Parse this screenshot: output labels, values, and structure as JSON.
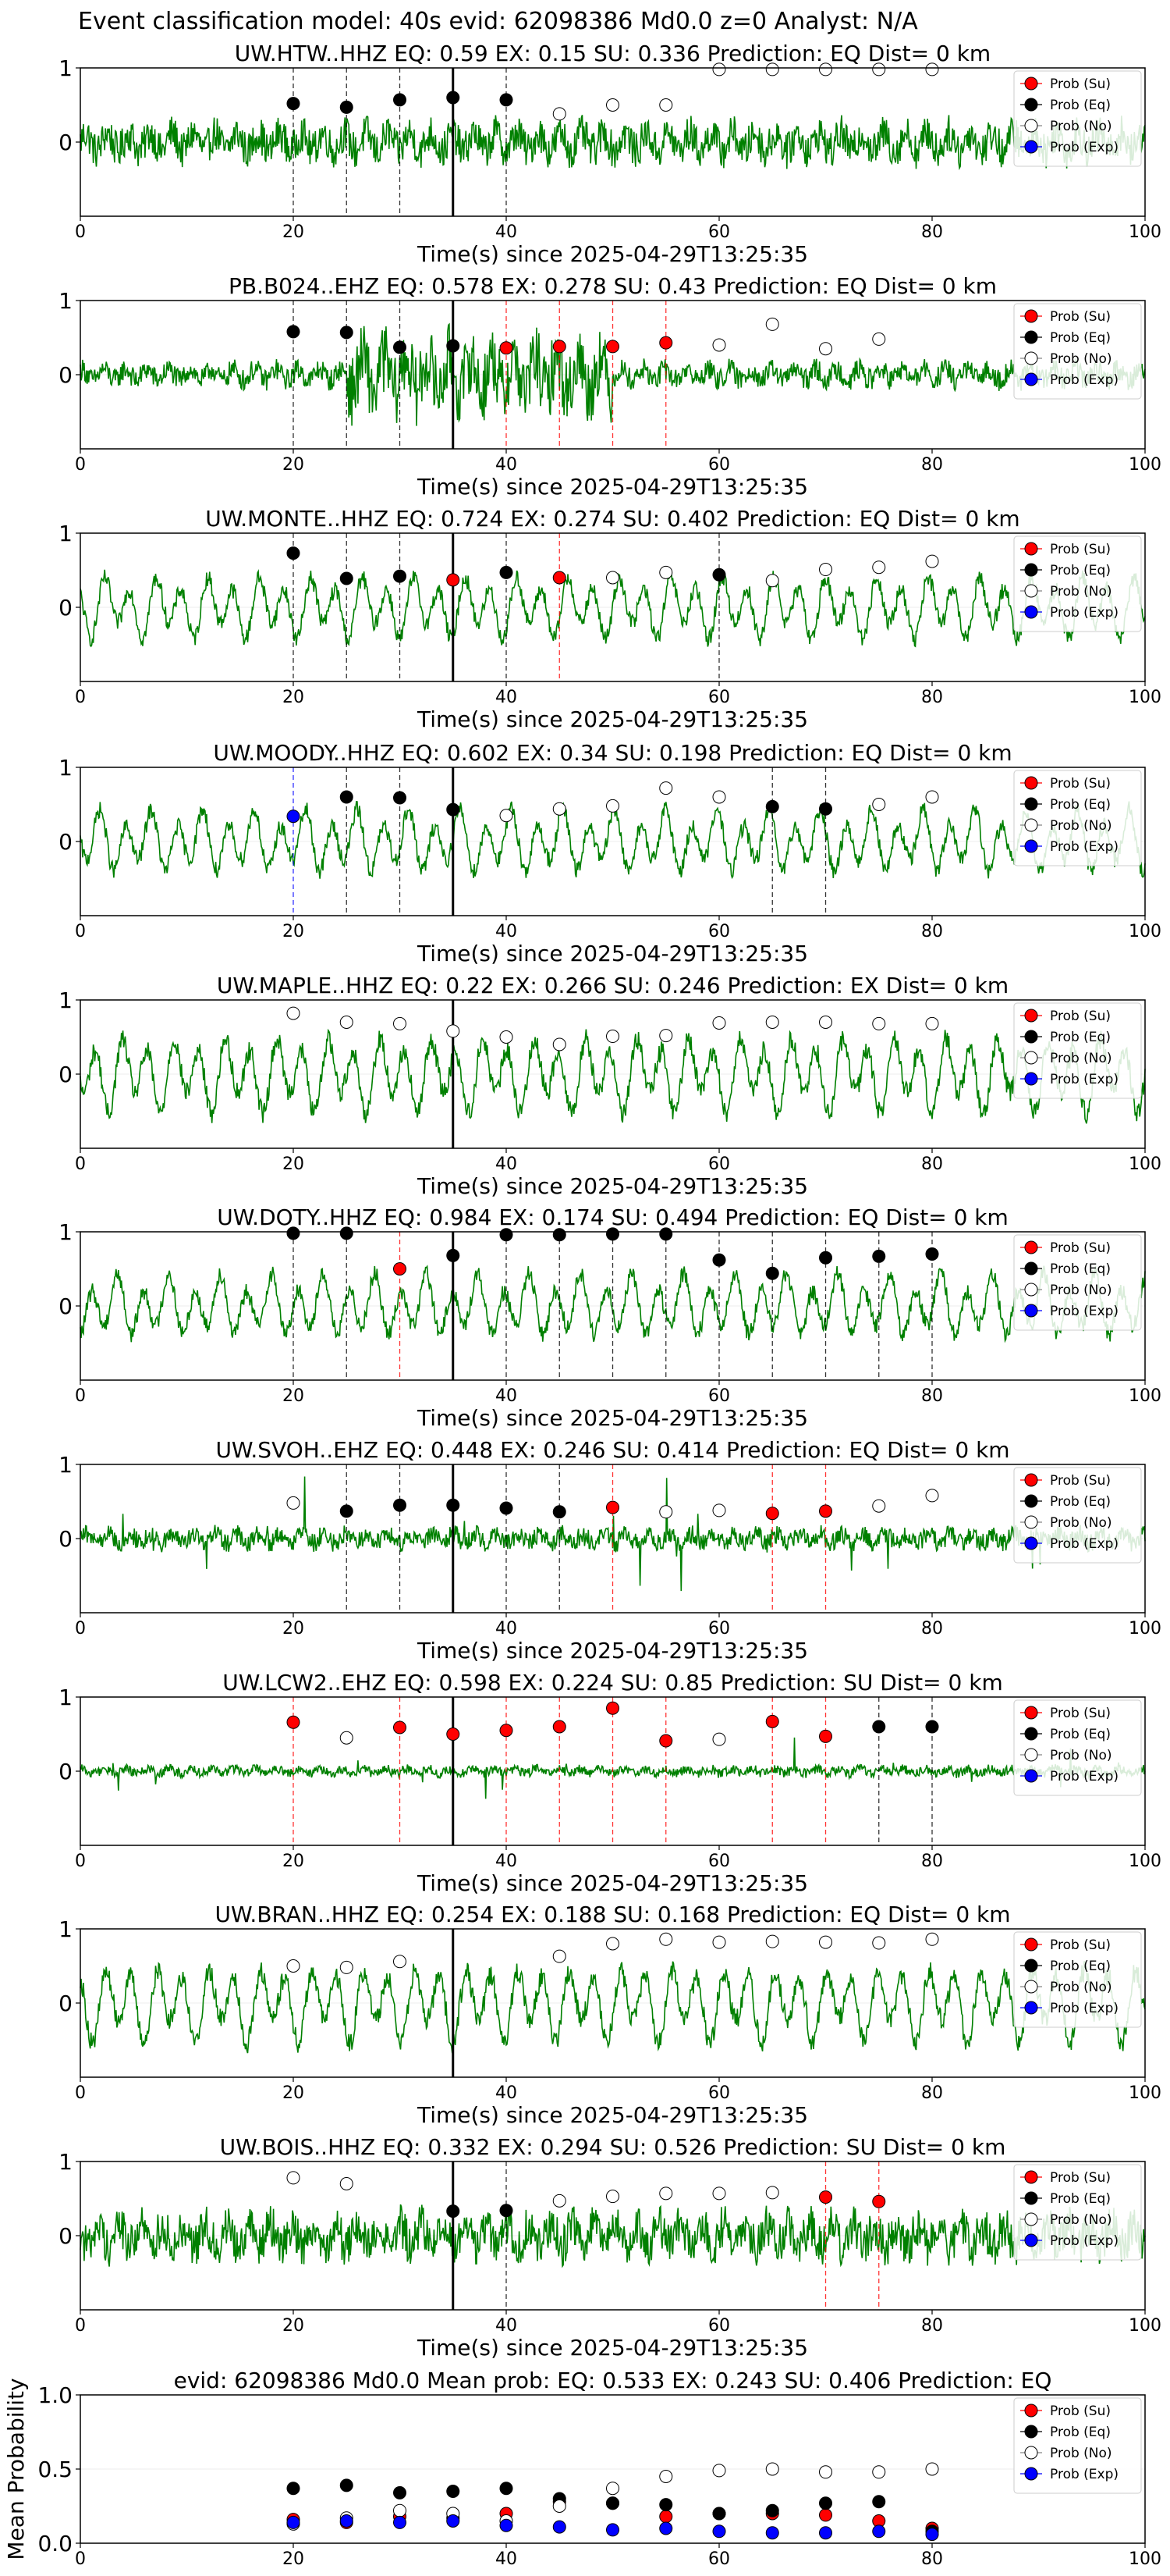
{
  "figure_title": "Event classification model: 40s evid: 62098386 Md0.0 z=0 Analyst: N/A",
  "legend_labels": [
    "Prob (Su)",
    "Prob (Eq)",
    "Prob (No)",
    "Prob (Exp)"
  ],
  "colors": {
    "waveform": "#008000",
    "su": "#ff0000",
    "eq": "#000000",
    "no": "#ffffff",
    "exp": "#0000ff",
    "su_line": "#ff0000",
    "eq_line": "#000000",
    "exp_line": "#0000ff"
  },
  "chart_data": [
    {
      "type": "line+scatter",
      "title": "UW.HTW..HHZ   EQ: 0.59  EX: 0.15  SU: 0.336   Prediction: EQ    Dist= 0 km",
      "xlabel": "Time(s) since 2025-04-29T13:25:35",
      "ylabel": "",
      "xlim": [
        0,
        100
      ],
      "ylim": [
        -1,
        1
      ],
      "xticks": [
        0,
        20,
        40,
        60,
        80,
        100
      ],
      "yticks": [
        0,
        1
      ],
      "pick_time": 35,
      "waveform": {
        "amplitude": 0.35,
        "character": "broadband"
      },
      "points": [
        {
          "x": 20,
          "y": 0.52,
          "c": "eq",
          "line": true
        },
        {
          "x": 25,
          "y": 0.47,
          "c": "eq",
          "line": true
        },
        {
          "x": 30,
          "y": 0.57,
          "c": "eq",
          "line": true
        },
        {
          "x": 35,
          "y": 0.6,
          "c": "eq",
          "line": true
        },
        {
          "x": 40,
          "y": 0.57,
          "c": "eq",
          "line": true
        },
        {
          "x": 45,
          "y": 0.38,
          "c": "no"
        },
        {
          "x": 50,
          "y": 0.5,
          "c": "no"
        },
        {
          "x": 55,
          "y": 0.5,
          "c": "no"
        },
        {
          "x": 60,
          "y": 0.98,
          "c": "no"
        },
        {
          "x": 65,
          "y": 0.98,
          "c": "no"
        },
        {
          "x": 70,
          "y": 0.98,
          "c": "no"
        },
        {
          "x": 75,
          "y": 0.98,
          "c": "no"
        },
        {
          "x": 80,
          "y": 0.98,
          "c": "no"
        }
      ]
    },
    {
      "type": "line+scatter",
      "title": "PB.B024..EHZ   EQ: 0.578  EX: 0.278  SU: 0.43   Prediction: EQ    Dist= 0 km",
      "xlabel": "Time(s) since 2025-04-29T13:25:35",
      "ylabel": "",
      "xlim": [
        0,
        100
      ],
      "ylim": [
        -1,
        1
      ],
      "xticks": [
        0,
        20,
        40,
        60,
        80,
        100
      ],
      "yticks": [
        0,
        1
      ],
      "pick_time": 35,
      "waveform": {
        "amplitude": 0.3,
        "character": "burst"
      },
      "points": [
        {
          "x": 20,
          "y": 0.58,
          "c": "eq",
          "line": true
        },
        {
          "x": 25,
          "y": 0.57,
          "c": "eq",
          "line": true
        },
        {
          "x": 30,
          "y": 0.37,
          "c": "eq",
          "line": true
        },
        {
          "x": 35,
          "y": 0.39,
          "c": "eq",
          "line": true
        },
        {
          "x": 40,
          "y": 0.36,
          "c": "su",
          "line": true
        },
        {
          "x": 45,
          "y": 0.38,
          "c": "su",
          "line": true
        },
        {
          "x": 50,
          "y": 0.38,
          "c": "su",
          "line": true
        },
        {
          "x": 55,
          "y": 0.43,
          "c": "su",
          "line": true
        },
        {
          "x": 60,
          "y": 0.4,
          "c": "no"
        },
        {
          "x": 65,
          "y": 0.68,
          "c": "no"
        },
        {
          "x": 70,
          "y": 0.35,
          "c": "no"
        },
        {
          "x": 75,
          "y": 0.48,
          "c": "no"
        }
      ]
    },
    {
      "type": "line+scatter",
      "title": "UW.MONTE..HHZ   EQ: 0.724  EX: 0.274  SU: 0.402   Prediction: EQ    Dist= 0 km",
      "xlabel": "Time(s) since 2025-04-29T13:25:35",
      "ylabel": "",
      "xlim": [
        0,
        100
      ],
      "ylim": [
        -1,
        1
      ],
      "xticks": [
        0,
        20,
        40,
        60,
        80,
        100
      ],
      "yticks": [
        0,
        1
      ],
      "pick_time": 35,
      "waveform": {
        "amplitude": 0.45,
        "character": "oscillatory"
      },
      "points": [
        {
          "x": 20,
          "y": 0.73,
          "c": "eq",
          "line": true
        },
        {
          "x": 25,
          "y": 0.39,
          "c": "eq",
          "line": true
        },
        {
          "x": 30,
          "y": 0.42,
          "c": "eq",
          "line": true
        },
        {
          "x": 35,
          "y": 0.37,
          "c": "su",
          "line": true
        },
        {
          "x": 40,
          "y": 0.47,
          "c": "eq",
          "line": true
        },
        {
          "x": 45,
          "y": 0.4,
          "c": "su",
          "line": true
        },
        {
          "x": 50,
          "y": 0.4,
          "c": "no"
        },
        {
          "x": 55,
          "y": 0.47,
          "c": "no"
        },
        {
          "x": 60,
          "y": 0.44,
          "c": "eq",
          "line": true
        },
        {
          "x": 65,
          "y": 0.36,
          "c": "no"
        },
        {
          "x": 70,
          "y": 0.51,
          "c": "no"
        },
        {
          "x": 75,
          "y": 0.54,
          "c": "no"
        },
        {
          "x": 80,
          "y": 0.62,
          "c": "no"
        }
      ]
    },
    {
      "type": "line+scatter",
      "title": "UW.MOODY..HHZ   EQ: 0.602  EX: 0.34  SU: 0.198   Prediction: EQ    Dist= 0 km",
      "xlabel": "Time(s) since 2025-04-29T13:25:35",
      "ylabel": "",
      "xlim": [
        0,
        100
      ],
      "ylim": [
        -1,
        1
      ],
      "xticks": [
        0,
        20,
        40,
        60,
        80,
        100
      ],
      "yticks": [
        0,
        1
      ],
      "pick_time": 35,
      "waveform": {
        "amplitude": 0.45,
        "character": "oscillatory"
      },
      "points": [
        {
          "x": 20,
          "y": 0.34,
          "c": "exp",
          "line": true
        },
        {
          "x": 25,
          "y": 0.6,
          "c": "eq",
          "line": true
        },
        {
          "x": 30,
          "y": 0.59,
          "c": "eq",
          "line": true
        },
        {
          "x": 35,
          "y": 0.43,
          "c": "eq",
          "line": true
        },
        {
          "x": 40,
          "y": 0.35,
          "c": "no"
        },
        {
          "x": 45,
          "y": 0.44,
          "c": "no"
        },
        {
          "x": 50,
          "y": 0.48,
          "c": "no"
        },
        {
          "x": 55,
          "y": 0.72,
          "c": "no"
        },
        {
          "x": 60,
          "y": 0.6,
          "c": "no"
        },
        {
          "x": 65,
          "y": 0.47,
          "c": "eq",
          "line": true
        },
        {
          "x": 70,
          "y": 0.44,
          "c": "eq",
          "line": true
        },
        {
          "x": 75,
          "y": 0.5,
          "c": "no"
        },
        {
          "x": 80,
          "y": 0.6,
          "c": "no"
        }
      ]
    },
    {
      "type": "line+scatter",
      "title": "UW.MAPLE..HHZ   EQ: 0.22  EX: 0.266  SU: 0.246   Prediction: EX    Dist= 0 km",
      "xlabel": "Time(s) since 2025-04-29T13:25:35",
      "ylabel": "",
      "xlim": [
        0,
        100
      ],
      "ylim": [
        -1,
        1
      ],
      "xticks": [
        0,
        20,
        40,
        60,
        80,
        100
      ],
      "yticks": [
        0,
        1
      ],
      "pick_time": 35,
      "waveform": {
        "amplitude": 0.55,
        "character": "oscillatory"
      },
      "points": [
        {
          "x": 20,
          "y": 0.82,
          "c": "no"
        },
        {
          "x": 25,
          "y": 0.7,
          "c": "no"
        },
        {
          "x": 30,
          "y": 0.68,
          "c": "no"
        },
        {
          "x": 35,
          "y": 0.58,
          "c": "no"
        },
        {
          "x": 40,
          "y": 0.5,
          "c": "no"
        },
        {
          "x": 45,
          "y": 0.4,
          "c": "no"
        },
        {
          "x": 50,
          "y": 0.51,
          "c": "no"
        },
        {
          "x": 55,
          "y": 0.52,
          "c": "no"
        },
        {
          "x": 60,
          "y": 0.69,
          "c": "no"
        },
        {
          "x": 65,
          "y": 0.7,
          "c": "no"
        },
        {
          "x": 70,
          "y": 0.7,
          "c": "no"
        },
        {
          "x": 75,
          "y": 0.68,
          "c": "no"
        },
        {
          "x": 80,
          "y": 0.68,
          "c": "no"
        }
      ]
    },
    {
      "type": "line+scatter",
      "title": "UW.DOTY..HHZ   EQ: 0.984  EX: 0.174  SU: 0.494   Prediction: EQ    Dist= 0 km",
      "xlabel": "Time(s) since 2025-04-29T13:25:35",
      "ylabel": "",
      "xlim": [
        0,
        100
      ],
      "ylim": [
        -1,
        1
      ],
      "xticks": [
        0,
        20,
        40,
        60,
        80,
        100
      ],
      "yticks": [
        0,
        1
      ],
      "pick_time": 35,
      "waveform": {
        "amplitude": 0.45,
        "character": "oscillatory"
      },
      "points": [
        {
          "x": 20,
          "y": 0.98,
          "c": "eq",
          "line": true
        },
        {
          "x": 25,
          "y": 0.98,
          "c": "eq",
          "line": true
        },
        {
          "x": 30,
          "y": 0.5,
          "c": "su",
          "line": true
        },
        {
          "x": 35,
          "y": 0.68,
          "c": "eq",
          "line": true
        },
        {
          "x": 40,
          "y": 0.96,
          "c": "eq",
          "line": true
        },
        {
          "x": 45,
          "y": 0.96,
          "c": "eq",
          "line": true
        },
        {
          "x": 50,
          "y": 0.97,
          "c": "eq",
          "line": true
        },
        {
          "x": 55,
          "y": 0.97,
          "c": "eq",
          "line": true
        },
        {
          "x": 60,
          "y": 0.62,
          "c": "eq",
          "line": true
        },
        {
          "x": 65,
          "y": 0.44,
          "c": "eq",
          "line": true
        },
        {
          "x": 70,
          "y": 0.65,
          "c": "eq",
          "line": true
        },
        {
          "x": 75,
          "y": 0.67,
          "c": "eq",
          "line": true
        },
        {
          "x": 80,
          "y": 0.7,
          "c": "eq",
          "line": true
        }
      ]
    },
    {
      "type": "line+scatter",
      "title": "UW.SVOH..EHZ   EQ: 0.448  EX: 0.246  SU: 0.414   Prediction: EQ    Dist= 0 km",
      "xlabel": "Time(s) since 2025-04-29T13:25:35",
      "ylabel": "",
      "xlim": [
        0,
        100
      ],
      "ylim": [
        -1,
        1
      ],
      "xticks": [
        0,
        20,
        40,
        60,
        80,
        100
      ],
      "yticks": [
        0,
        1
      ],
      "pick_time": 35,
      "waveform": {
        "amplitude": 0.3,
        "character": "spiky"
      },
      "points": [
        {
          "x": 20,
          "y": 0.48,
          "c": "no"
        },
        {
          "x": 25,
          "y": 0.37,
          "c": "eq",
          "line": true
        },
        {
          "x": 30,
          "y": 0.45,
          "c": "eq",
          "line": true
        },
        {
          "x": 35,
          "y": 0.45,
          "c": "eq",
          "line": true
        },
        {
          "x": 40,
          "y": 0.41,
          "c": "eq",
          "line": true
        },
        {
          "x": 45,
          "y": 0.36,
          "c": "eq",
          "line": true
        },
        {
          "x": 50,
          "y": 0.42,
          "c": "su",
          "line": true
        },
        {
          "x": 55,
          "y": 0.36,
          "c": "no"
        },
        {
          "x": 60,
          "y": 0.38,
          "c": "no"
        },
        {
          "x": 65,
          "y": 0.34,
          "c": "su",
          "line": true
        },
        {
          "x": 70,
          "y": 0.37,
          "c": "su",
          "line": true
        },
        {
          "x": 75,
          "y": 0.44,
          "c": "no"
        },
        {
          "x": 80,
          "y": 0.58,
          "c": "no"
        }
      ]
    },
    {
      "type": "line+scatter",
      "title": "UW.LCW2..EHZ   EQ: 0.598  EX: 0.224  SU: 0.85   Prediction: SU    Dist= 0 km",
      "xlabel": "Time(s) since 2025-04-29T13:25:35",
      "ylabel": "",
      "xlim": [
        0,
        100
      ],
      "ylim": [
        -1,
        1
      ],
      "xticks": [
        0,
        20,
        40,
        60,
        80,
        100
      ],
      "yticks": [
        0,
        1
      ],
      "pick_time": 35,
      "waveform": {
        "amplitude": 0.15,
        "character": "spiky"
      },
      "points": [
        {
          "x": 20,
          "y": 0.66,
          "c": "su",
          "line": true
        },
        {
          "x": 25,
          "y": 0.45,
          "c": "no"
        },
        {
          "x": 30,
          "y": 0.59,
          "c": "su",
          "line": true
        },
        {
          "x": 35,
          "y": 0.5,
          "c": "su",
          "line": true
        },
        {
          "x": 40,
          "y": 0.55,
          "c": "su",
          "line": true
        },
        {
          "x": 45,
          "y": 0.6,
          "c": "su",
          "line": true
        },
        {
          "x": 50,
          "y": 0.85,
          "c": "su",
          "line": true
        },
        {
          "x": 55,
          "y": 0.41,
          "c": "su",
          "line": true
        },
        {
          "x": 60,
          "y": 0.43,
          "c": "no"
        },
        {
          "x": 65,
          "y": 0.67,
          "c": "su",
          "line": true
        },
        {
          "x": 70,
          "y": 0.47,
          "c": "su",
          "line": true
        },
        {
          "x": 75,
          "y": 0.6,
          "c": "eq",
          "line": true
        },
        {
          "x": 80,
          "y": 0.6,
          "c": "eq",
          "line": true
        }
      ]
    },
    {
      "type": "line+scatter",
      "title": "UW.BRAN..HHZ   EQ: 0.254  EX: 0.188  SU: 0.168   Prediction: EQ    Dist= 0 km",
      "xlabel": "Time(s) since 2025-04-29T13:25:35",
      "ylabel": "",
      "xlim": [
        0,
        100
      ],
      "ylim": [
        -1,
        1
      ],
      "xticks": [
        0,
        20,
        40,
        60,
        80,
        100
      ],
      "yticks": [
        0,
        1
      ],
      "pick_time": 35,
      "waveform": {
        "amplitude": 0.55,
        "character": "oscillatory"
      },
      "points": [
        {
          "x": 20,
          "y": 0.5,
          "c": "no"
        },
        {
          "x": 25,
          "y": 0.48,
          "c": "no"
        },
        {
          "x": 30,
          "y": 0.56,
          "c": "no"
        },
        {
          "x": 45,
          "y": 0.63,
          "c": "no"
        },
        {
          "x": 50,
          "y": 0.8,
          "c": "no"
        },
        {
          "x": 55,
          "y": 0.86,
          "c": "no"
        },
        {
          "x": 60,
          "y": 0.82,
          "c": "no"
        },
        {
          "x": 65,
          "y": 0.83,
          "c": "no"
        },
        {
          "x": 70,
          "y": 0.82,
          "c": "no"
        },
        {
          "x": 75,
          "y": 0.81,
          "c": "no"
        },
        {
          "x": 80,
          "y": 0.86,
          "c": "no"
        }
      ]
    },
    {
      "type": "line+scatter",
      "title": "UW.BOIS..HHZ   EQ: 0.332  EX: 0.294  SU: 0.526   Prediction: SU    Dist= 0 km",
      "xlabel": "Time(s) since 2025-04-29T13:25:35",
      "ylabel": "",
      "xlim": [
        0,
        100
      ],
      "ylim": [
        -1,
        1
      ],
      "xticks": [
        0,
        20,
        40,
        60,
        80,
        100
      ],
      "yticks": [
        0,
        1
      ],
      "pick_time": 35,
      "waveform": {
        "amplitude": 0.4,
        "character": "broadband"
      },
      "points": [
        {
          "x": 20,
          "y": 0.78,
          "c": "no"
        },
        {
          "x": 25,
          "y": 0.7,
          "c": "no"
        },
        {
          "x": 35,
          "y": 0.33,
          "c": "eq",
          "line": true
        },
        {
          "x": 40,
          "y": 0.34,
          "c": "eq",
          "line": true
        },
        {
          "x": 45,
          "y": 0.47,
          "c": "no"
        },
        {
          "x": 50,
          "y": 0.53,
          "c": "no"
        },
        {
          "x": 55,
          "y": 0.57,
          "c": "no"
        },
        {
          "x": 60,
          "y": 0.57,
          "c": "no"
        },
        {
          "x": 65,
          "y": 0.58,
          "c": "no"
        },
        {
          "x": 70,
          "y": 0.52,
          "c": "su",
          "line": true
        },
        {
          "x": 75,
          "y": 0.46,
          "c": "su",
          "line": true
        }
      ]
    },
    {
      "type": "scatter",
      "title": "evid: 62098386  Md0.0   Mean prob:   EQ: 0.533  EX: 0.243  SU: 0.406   Prediction: EQ",
      "xlabel": "",
      "ylabel": "Mean Probability",
      "xlim": [
        0,
        100
      ],
      "ylim": [
        0,
        1
      ],
      "xticks": [
        0,
        20,
        40,
        60,
        80,
        100
      ],
      "yticks": [
        0.0,
        0.5,
        1.0
      ],
      "ytick_labels": [
        "0.0",
        "0.5",
        "1.0"
      ],
      "x": [
        20,
        25,
        30,
        35,
        40,
        45,
        50,
        55,
        60,
        65,
        70,
        75,
        80
      ],
      "series": [
        {
          "name": "Prob (Su)",
          "c": "su",
          "values": [
            0.16,
            0.14,
            0.18,
            0.17,
            0.2,
            0.28,
            0.27,
            0.18,
            0.2,
            0.2,
            0.19,
            0.15,
            0.1
          ]
        },
        {
          "name": "Prob (Eq)",
          "c": "eq",
          "values": [
            0.37,
            0.39,
            0.34,
            0.35,
            0.37,
            0.3,
            0.27,
            0.26,
            0.2,
            0.22,
            0.27,
            0.28,
            0.08
          ]
        },
        {
          "name": "Prob (No)",
          "c": "no",
          "values": [
            0.13,
            0.17,
            0.22,
            0.2,
            0.15,
            0.25,
            0.37,
            0.45,
            0.49,
            0.5,
            0.48,
            0.48,
            0.5
          ]
        },
        {
          "name": "Prob (Exp)",
          "c": "exp",
          "values": [
            0.14,
            0.15,
            0.14,
            0.15,
            0.12,
            0.11,
            0.09,
            0.1,
            0.08,
            0.07,
            0.07,
            0.08,
            0.06
          ]
        }
      ]
    }
  ]
}
